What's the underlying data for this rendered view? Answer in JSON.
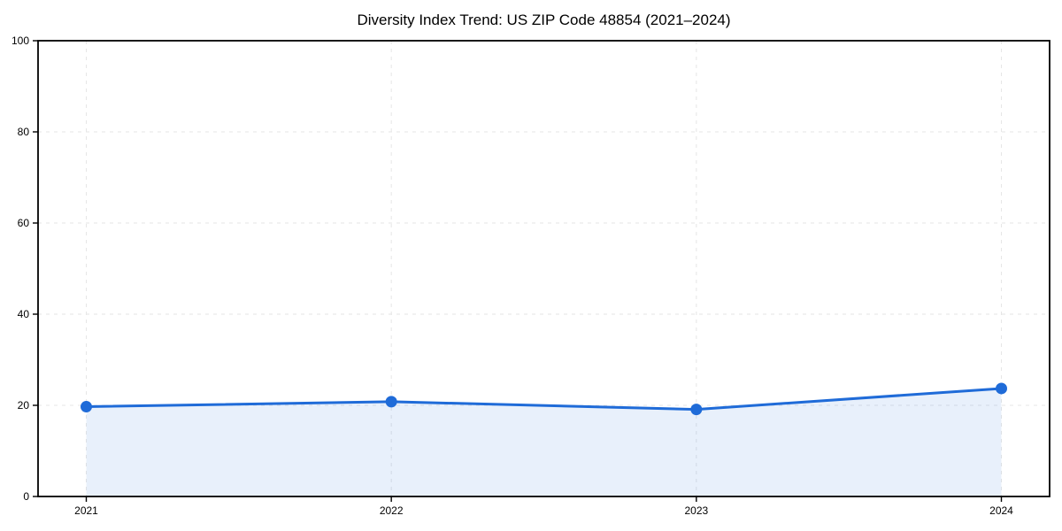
{
  "chart_data": {
    "type": "area",
    "title": "Diversity Index Trend: US ZIP Code 48854 (2021–2024)",
    "categories": [
      "2021",
      "2022",
      "2023",
      "2024"
    ],
    "series": [
      {
        "name": "Diversity Index",
        "values": [
          19.7,
          20.8,
          19.1,
          23.7
        ]
      }
    ],
    "xlabel": "",
    "ylabel": "",
    "ylim": [
      0,
      100
    ],
    "yticks": [
      0,
      20,
      40,
      60,
      80,
      100
    ],
    "grid": true,
    "grid_style": "dashed",
    "legend": false,
    "colors": {
      "line": "#1f6bd8",
      "marker": "#1f6bd8",
      "fill": "rgba(31,107,216,0.10)",
      "grid": "#e6e6e6",
      "spine": "#000000",
      "background": "#ffffff",
      "text": "#000000"
    }
  }
}
